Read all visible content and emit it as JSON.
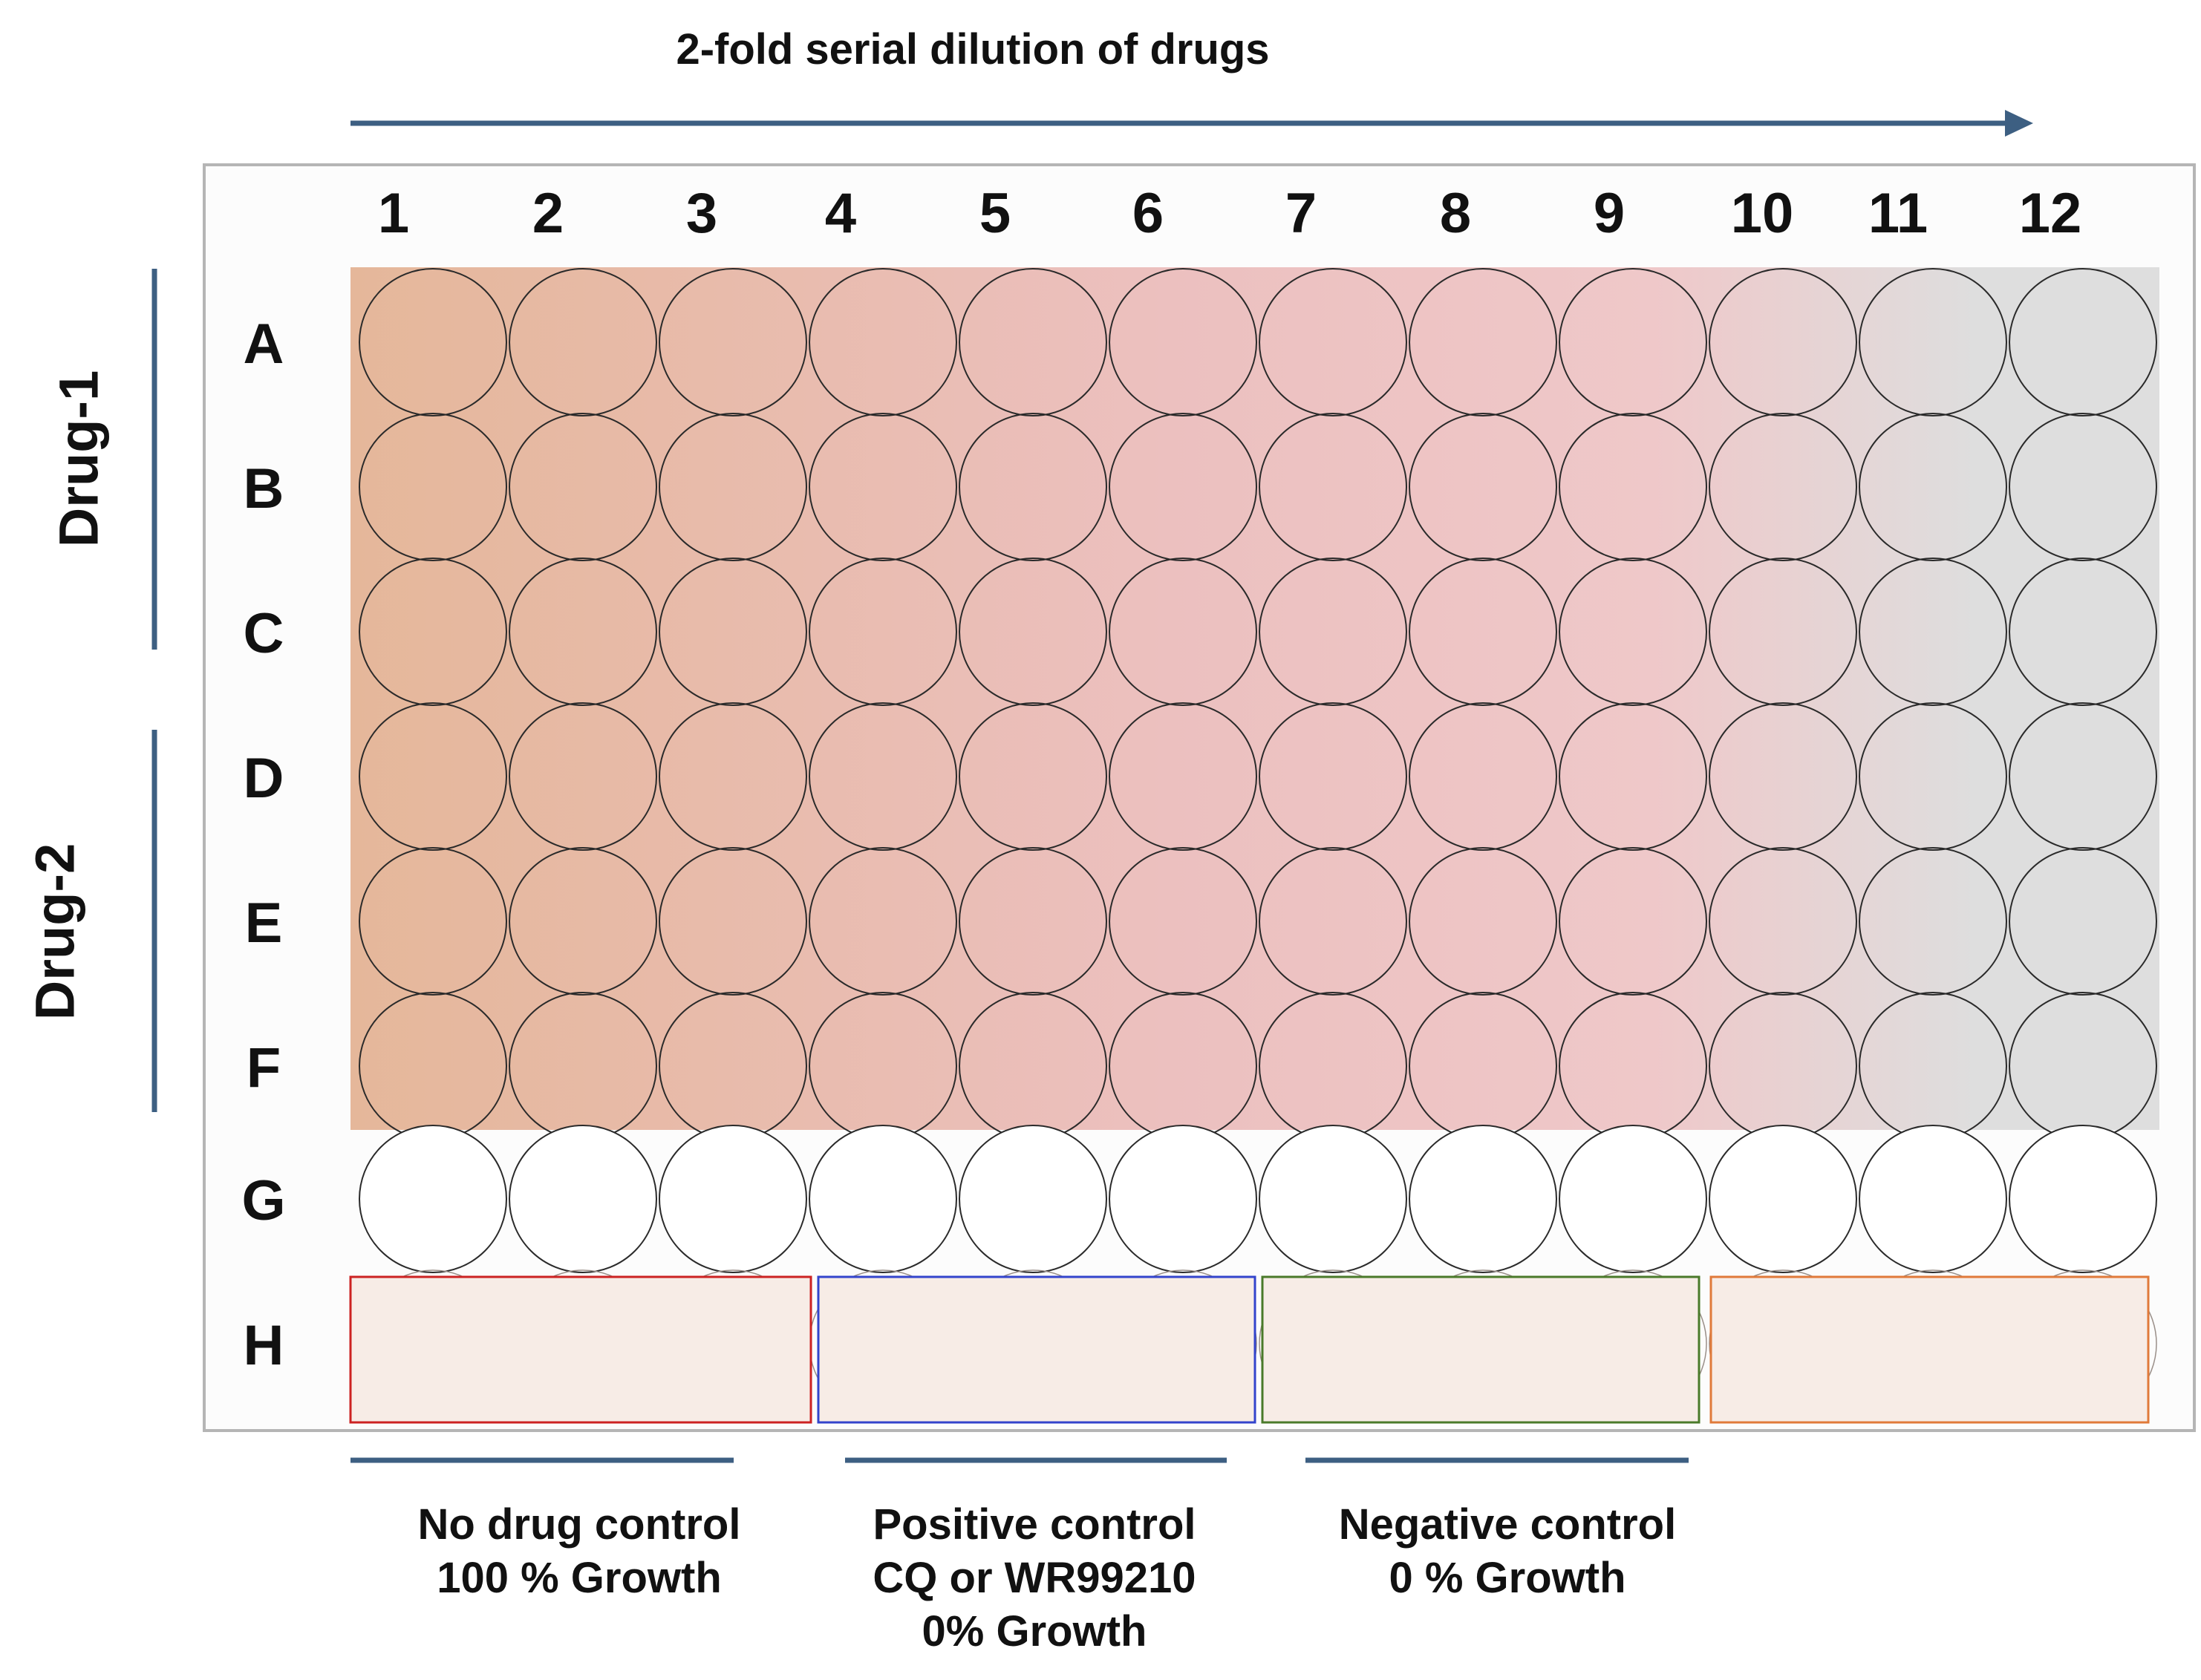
{
  "title": "2-fold serial dilution of drugs",
  "columns": [
    "1",
    "2",
    "3",
    "4",
    "5",
    "6",
    "7",
    "8",
    "9",
    "10",
    "11",
    "12"
  ],
  "rows": [
    "A",
    "B",
    "C",
    "D",
    "E",
    "F",
    "G",
    "H"
  ],
  "drug_groups": [
    {
      "label": "Drug-1",
      "rows": [
        "A",
        "B",
        "C"
      ]
    },
    {
      "label": "Drug-2",
      "rows": [
        "D",
        "E",
        "F"
      ]
    }
  ],
  "gradient_colors": [
    "#e5b79a",
    "#ecc0bf",
    "#efc8c9",
    "#dedede"
  ],
  "controls": [
    {
      "lines": [
        "No drug control",
        "100 % Growth"
      ],
      "columns": [
        "1",
        "2",
        "3"
      ],
      "box_color": "#cc2222"
    },
    {
      "lines": [
        "Positive control",
        "CQ or WR99210",
        "0% Growth"
      ],
      "columns": [
        "4",
        "5",
        "6"
      ],
      "box_color": "#3344cc"
    },
    {
      "lines": [
        "Negative control",
        "0 % Growth"
      ],
      "columns": [
        "7",
        "8",
        "9"
      ],
      "box_color": "#4a7a2a"
    },
    {
      "lines": [],
      "columns": [
        "10",
        "11",
        "12"
      ],
      "box_color": "#e07a3a"
    }
  ],
  "arrow_color": "#3d5f82",
  "control_row_color": "#f7ece6"
}
